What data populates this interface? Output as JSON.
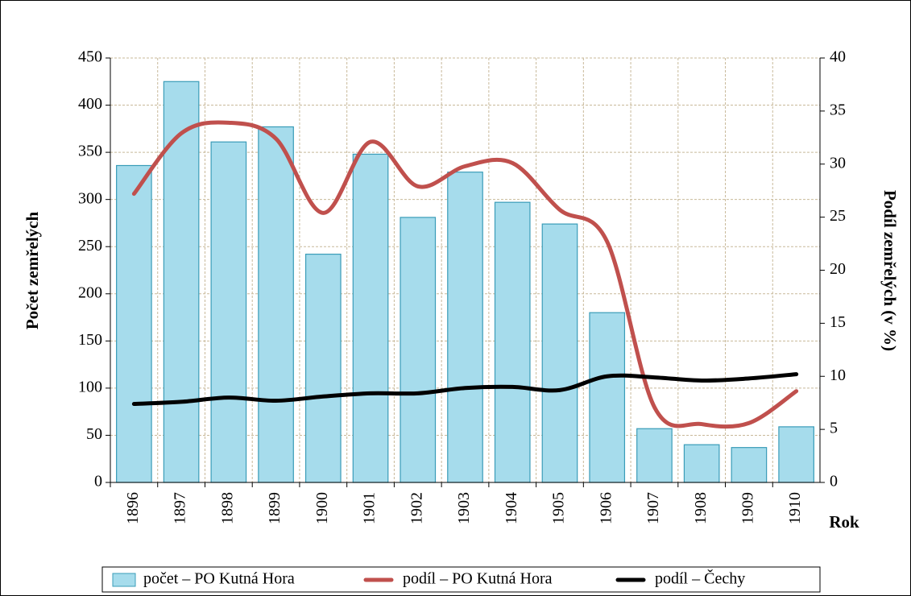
{
  "chart_data": {
    "type": "bar",
    "y_label": "Počet zemřelých",
    "y2_label": "Podíl zemřelých (v %)",
    "x_label": "Rok",
    "categories": [
      "1896",
      "1897",
      "1898",
      "1899",
      "1900",
      "1901",
      "1902",
      "1903",
      "1904",
      "1905",
      "1906",
      "1907",
      "1908",
      "1909",
      "1910"
    ],
    "series": [
      {
        "name": "počet – PO Kutná Hora",
        "type": "bar",
        "color": "#a6dcec",
        "edge": "#3a9cb8",
        "values": [
          336,
          425,
          361,
          377,
          242,
          348,
          281,
          329,
          297,
          274,
          180,
          57,
          40,
          37,
          59
        ]
      },
      {
        "name": "podíl – PO Kutná Hora",
        "type": "line",
        "axis": "y2",
        "color": "#c0504d",
        "values": [
          27.2,
          32.9,
          33.9,
          32.4,
          25.4,
          32.1,
          27.9,
          29.8,
          30.1,
          25.7,
          22.7,
          7.1,
          5.5,
          5.6,
          8.6
        ]
      },
      {
        "name": "podíl – Čechy",
        "type": "line",
        "axis": "y2",
        "color": "#000000",
        "values": [
          7.4,
          7.6,
          8.0,
          7.7,
          8.1,
          8.4,
          8.4,
          8.9,
          9.0,
          8.7,
          10.0,
          9.9,
          9.6,
          9.8,
          10.2
        ]
      }
    ],
    "ylim": [
      0,
      450
    ],
    "yticks": [
      0,
      50,
      100,
      150,
      200,
      250,
      300,
      350,
      400,
      450
    ],
    "y2lim": [
      0,
      40
    ],
    "y2ticks": [
      0,
      5,
      10,
      15,
      20,
      25,
      30,
      35,
      40
    ],
    "grid": true,
    "legend": "bottom"
  }
}
